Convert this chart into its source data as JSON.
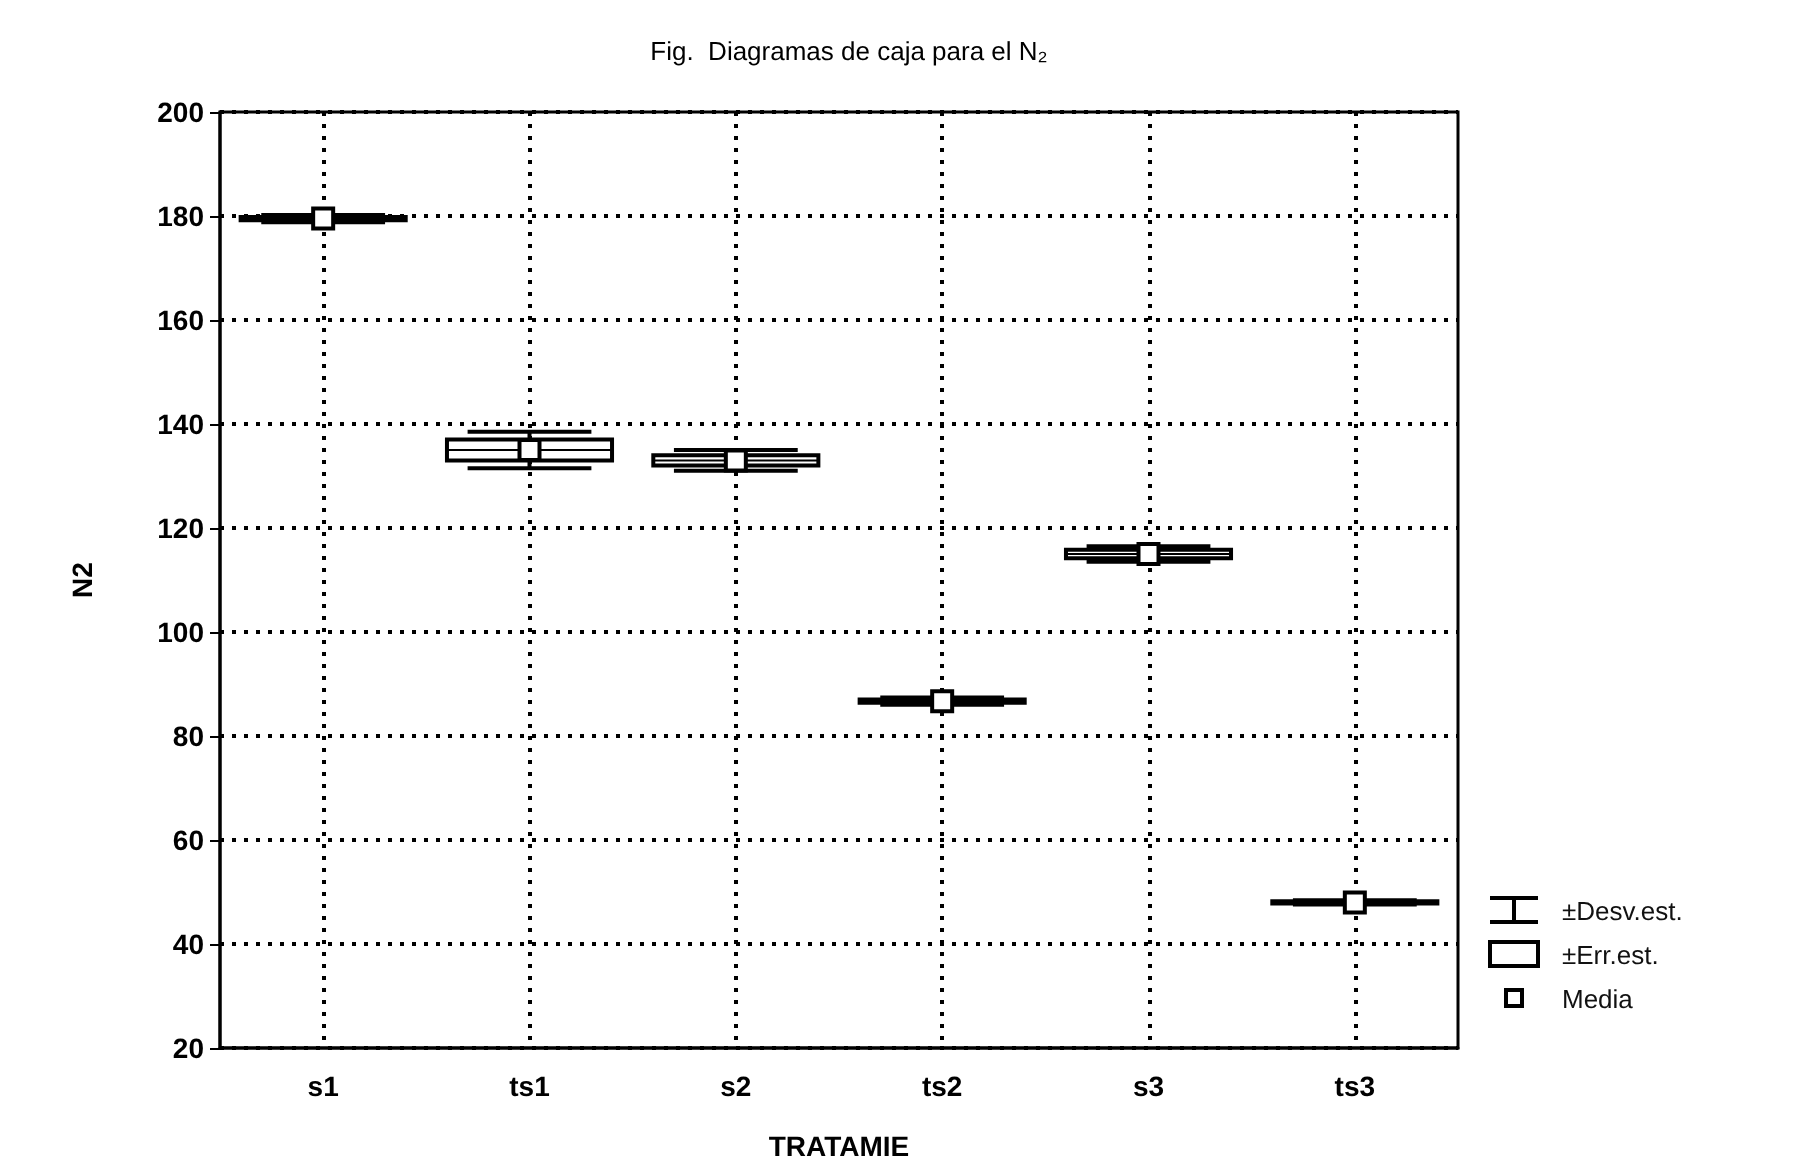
{
  "chart_data": {
    "type": "box",
    "title": "Fig.  Diagramas de caja para el N₂",
    "xlabel": "TRATAMIE",
    "ylabel": "N2",
    "categories": [
      "s1",
      "ts1",
      "s2",
      "ts2",
      "s3",
      "ts3"
    ],
    "boxes": [
      {
        "low": 178.8,
        "q1": 179.2,
        "median": 179.5,
        "q3": 179.8,
        "high": 180.2,
        "mean": 179.5
      },
      {
        "low": 131.5,
        "q1": 133,
        "median": 135,
        "q3": 137,
        "high": 138.5,
        "mean": 135
      },
      {
        "low": 131,
        "q1": 132,
        "median": 133,
        "q3": 134,
        "high": 135,
        "mean": 133
      },
      {
        "low": 86,
        "q1": 86.4,
        "median": 86.7,
        "q3": 87,
        "high": 87.4,
        "mean": 86.7
      },
      {
        "low": 113.5,
        "q1": 114.2,
        "median": 115,
        "q3": 115.8,
        "high": 116.5,
        "mean": 115
      },
      {
        "low": 47.6,
        "q1": 47.8,
        "median": 48,
        "q3": 48.2,
        "high": 48.4,
        "mean": 48
      }
    ],
    "ylim": [
      20,
      200
    ],
    "yticks": [
      20,
      40,
      60,
      80,
      100,
      120,
      140,
      160,
      180,
      200
    ],
    "annotations": [
      "±Desv.est.",
      "±Err.est.",
      "Media"
    ],
    "grid": true,
    "marker": "square"
  }
}
